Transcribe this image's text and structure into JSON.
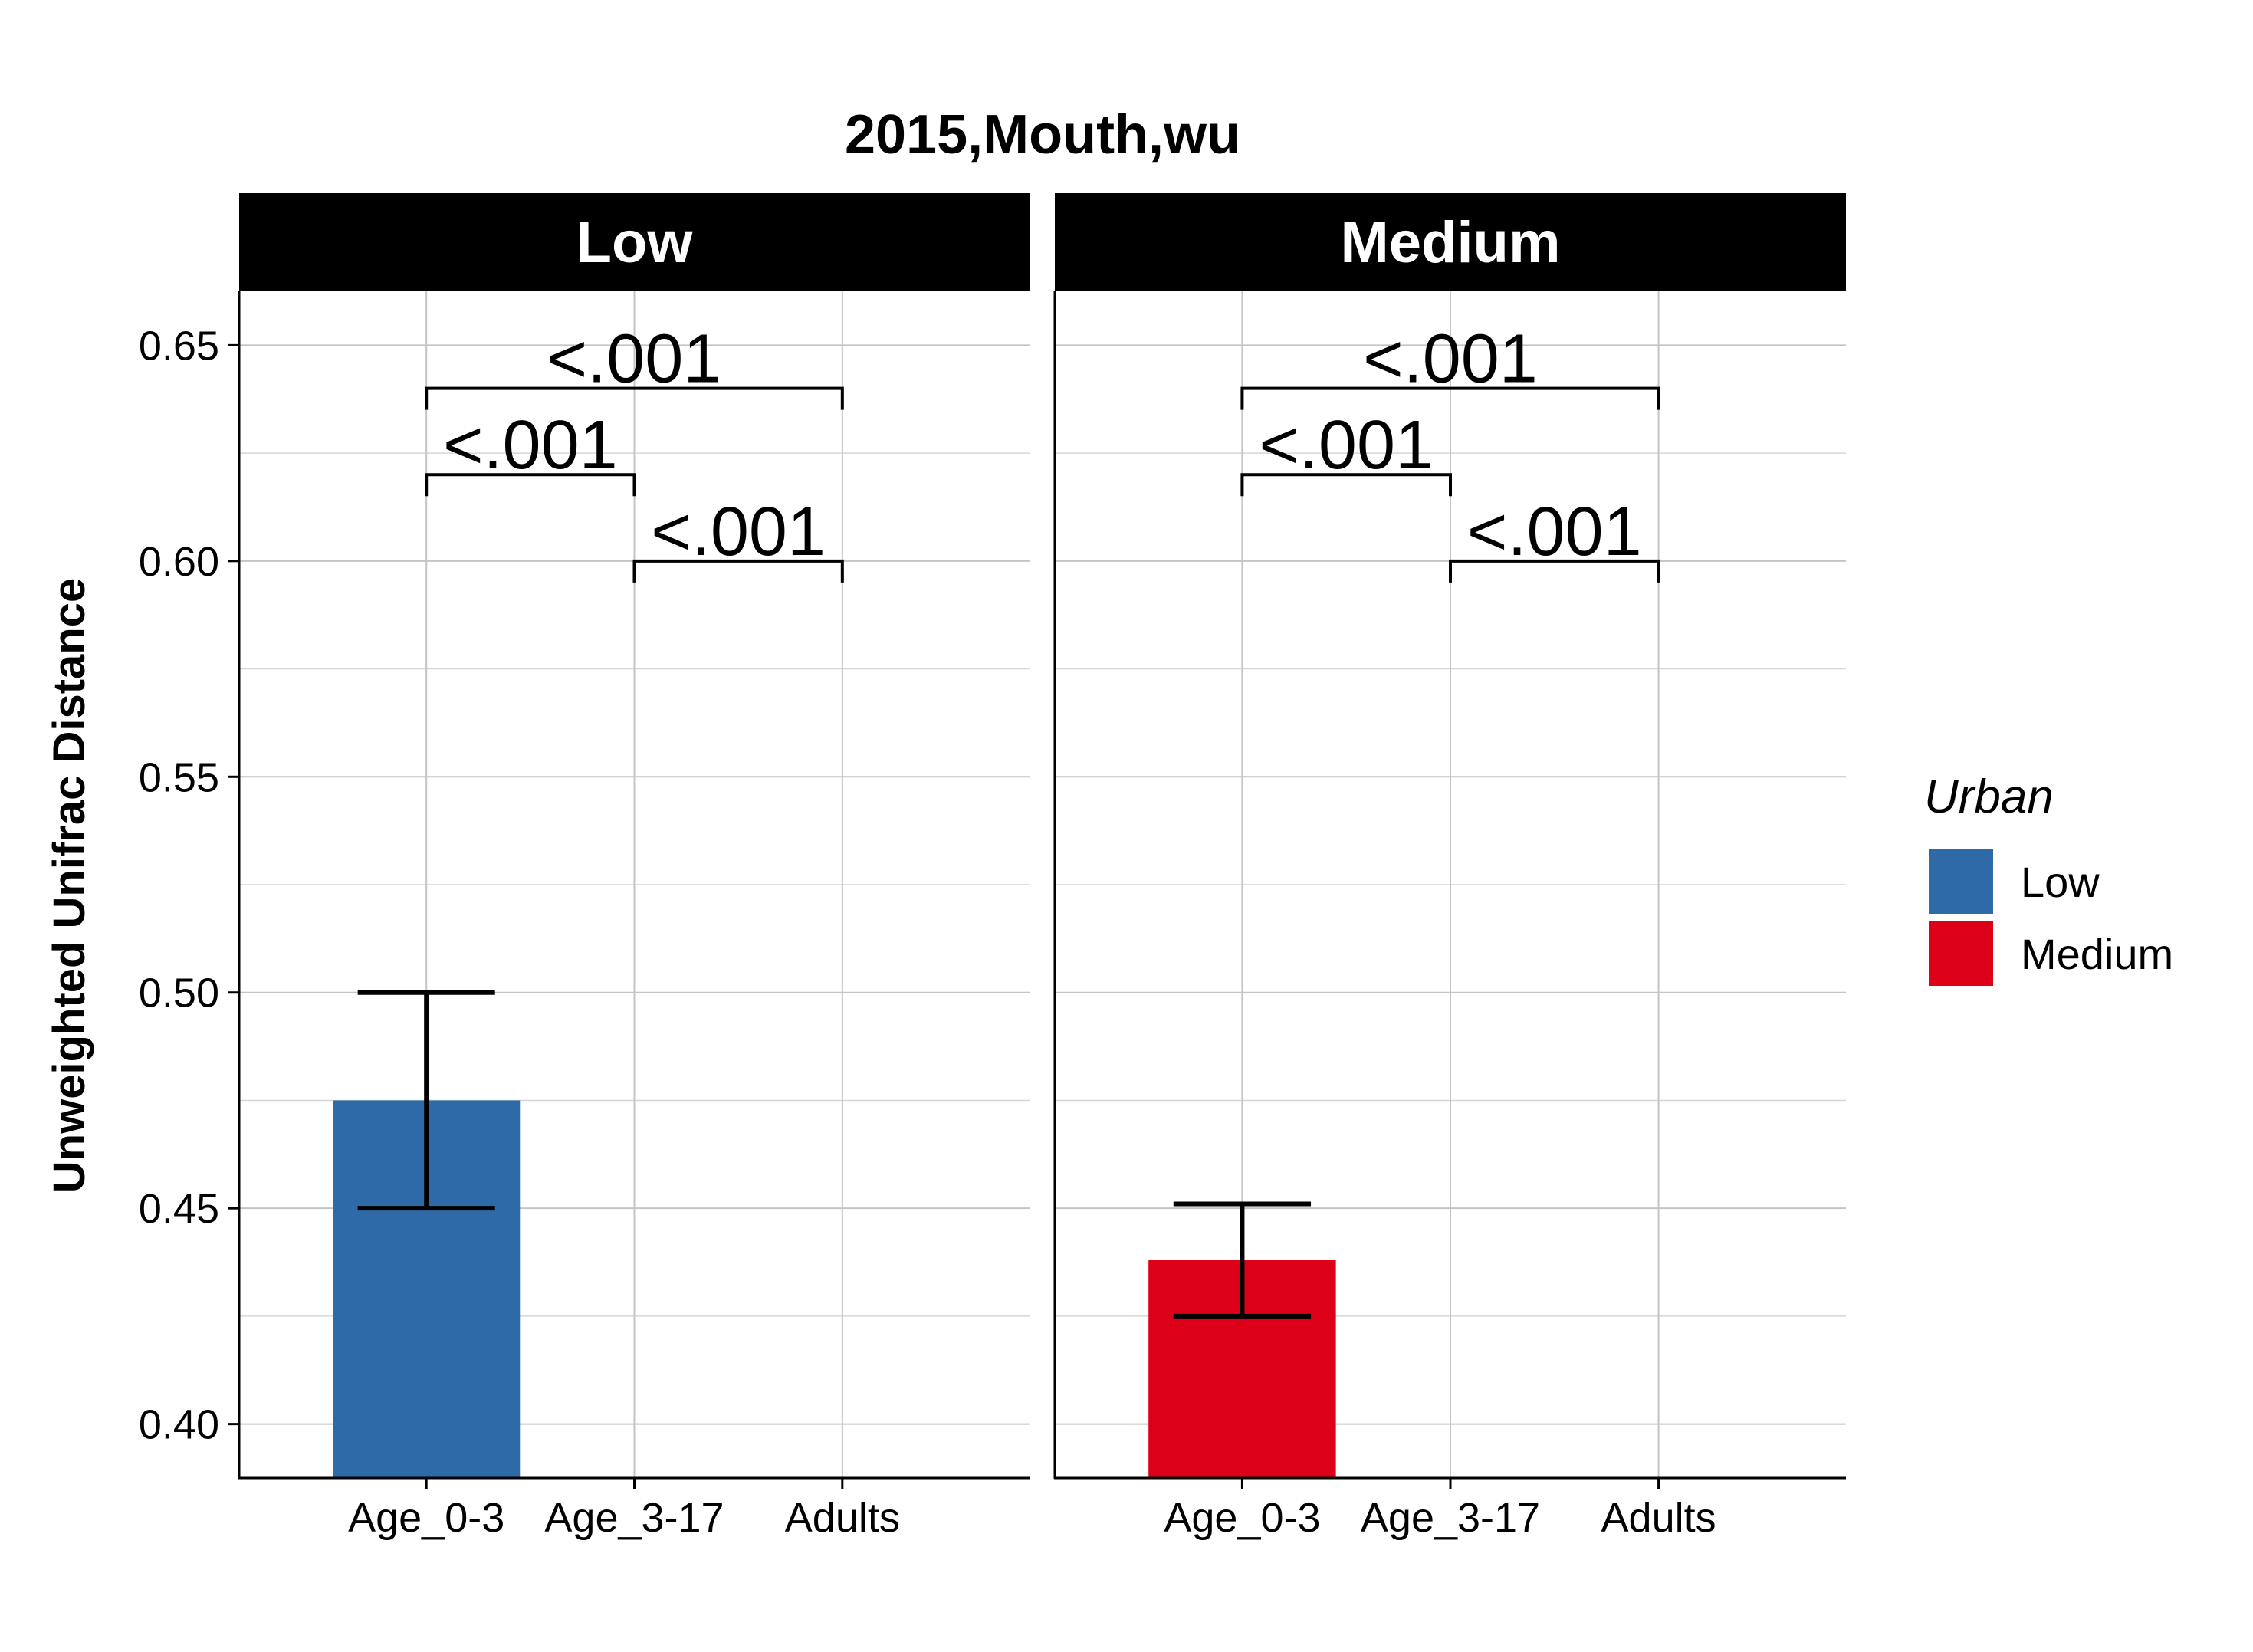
{
  "chart_data": {
    "type": "bar",
    "title": "2015,Mouth,wu",
    "ylabel": "Unweighted Unifrac Distance",
    "xlabel": "",
    "ylim": [
      0.3875,
      0.6625
    ],
    "yticks": [
      "0.40",
      "0.45",
      "0.50",
      "0.55",
      "0.60",
      "0.65"
    ],
    "categories": [
      "Age_0-3",
      "Age_3-17",
      "Adults"
    ],
    "grid": true,
    "legend": {
      "title": "Urban",
      "placement": "right",
      "items": [
        {
          "label": "Low",
          "color": "#2e6aa8"
        },
        {
          "label": "Medium",
          "color": "#dc0018"
        }
      ]
    },
    "facets": [
      {
        "label": "Low",
        "color": "#2e6aa8",
        "bars": [
          {
            "category": "Age_0-3",
            "value": 0.475,
            "error_low": 0.45,
            "error_high": 0.5
          }
        ],
        "comparisons": [
          {
            "from": "Age_0-3",
            "to": "Adults",
            "label": "<.001",
            "y": 0.64
          },
          {
            "from": "Age_0-3",
            "to": "Age_3-17",
            "label": "<.001",
            "y": 0.62
          },
          {
            "from": "Age_3-17",
            "to": "Adults",
            "label": "<.001",
            "y": 0.6
          }
        ]
      },
      {
        "label": "Medium",
        "color": "#dc0018",
        "bars": [
          {
            "category": "Age_0-3",
            "value": 0.438,
            "error_low": 0.425,
            "error_high": 0.451
          }
        ],
        "comparisons": [
          {
            "from": "Age_0-3",
            "to": "Adults",
            "label": "<.001",
            "y": 0.64
          },
          {
            "from": "Age_0-3",
            "to": "Age_3-17",
            "label": "<.001",
            "y": 0.62
          },
          {
            "from": "Age_3-17",
            "to": "Adults",
            "label": "<.001",
            "y": 0.6
          }
        ]
      }
    ]
  }
}
